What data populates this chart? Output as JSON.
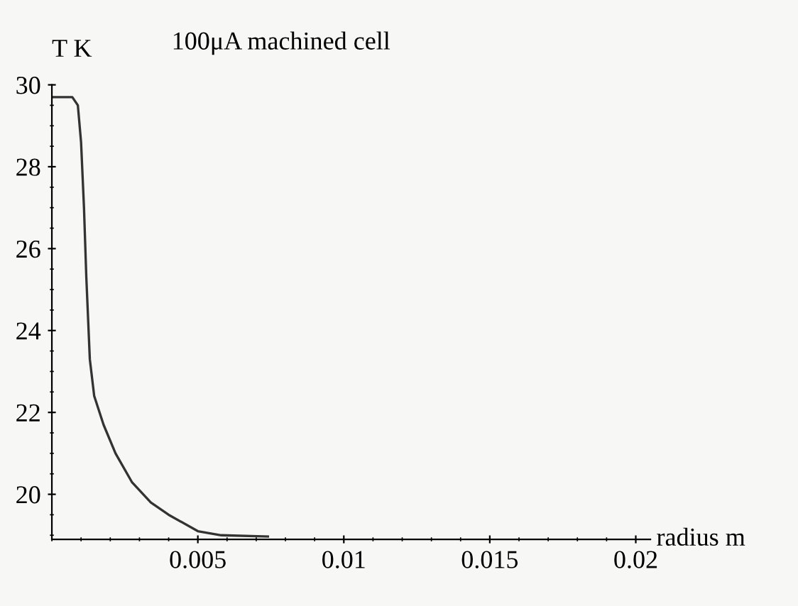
{
  "chart_data": {
    "type": "line",
    "title": "100μA machined cell",
    "xlabel": "radius m",
    "ylabel": "T K",
    "x": [
      0,
      0.0007,
      0.00089,
      0.001,
      0.0011,
      0.00118,
      0.0013,
      0.00145,
      0.00177,
      0.00218,
      0.00274,
      0.00339,
      0.004,
      0.005,
      0.0058,
      0.0074
    ],
    "series": [
      {
        "color": "#333333",
        "values": [
          29.7,
          29.7,
          29.5,
          28.6,
          27.0,
          25.3,
          23.3,
          22.4,
          21.7,
          21.0,
          20.3,
          19.8,
          19.5,
          19.1,
          19.0,
          18.97
        ]
      }
    ],
    "xlim": [
      0,
      0.0205
    ],
    "ylim": [
      18.9,
      30
    ],
    "xticks": [
      0.005,
      0.01,
      0.015,
      0.02
    ],
    "yticks": [
      20,
      22,
      24,
      26,
      28,
      30
    ],
    "grid": false,
    "legend": false,
    "marker": "none",
    "line_style": "solid"
  }
}
